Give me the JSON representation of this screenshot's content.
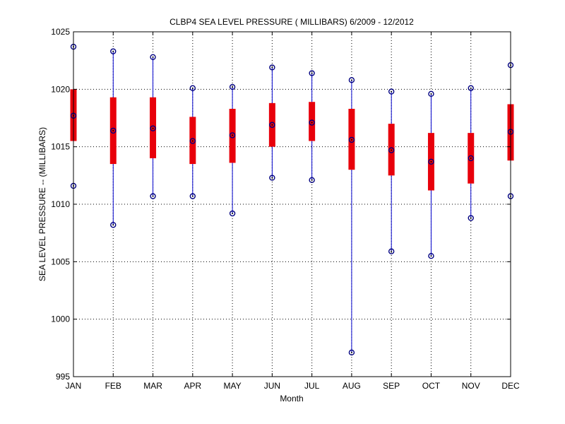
{
  "chart_data": {
    "type": "boxplot",
    "title": "CLBP4  SEA LEVEL PRESSURE ( MILLIBARS) 6/2009 - 12/2012",
    "xlabel": "Month",
    "ylabel": "SEA LEVEL PRESSURE -- (MILLIBARS)",
    "ylim": [
      995,
      1025
    ],
    "yticks": [
      995,
      1000,
      1005,
      1010,
      1015,
      1020,
      1025
    ],
    "grid": true,
    "categories": [
      "JAN",
      "FEB",
      "MAR",
      "APR",
      "MAY",
      "JUN",
      "JUL",
      "AUG",
      "SEP",
      "OCT",
      "NOV",
      "DEC"
    ],
    "series": [
      {
        "min": [
          1011.6,
          1008.2,
          1010.7,
          1010.7,
          1009.2,
          1012.3,
          1012.1,
          997.1,
          1005.9,
          1005.5,
          1008.8,
          1010.7
        ],
        "q1": [
          1015.5,
          1013.5,
          1014.0,
          1013.5,
          1013.6,
          1015.0,
          1015.5,
          1013.0,
          1012.5,
          1011.2,
          1011.8,
          1013.8
        ],
        "median": [
          1017.7,
          1016.4,
          1016.6,
          1015.5,
          1016.0,
          1016.9,
          1017.1,
          1015.6,
          1014.7,
          1013.7,
          1014.0,
          1016.3
        ],
        "q3": [
          1020.0,
          1019.3,
          1019.3,
          1017.6,
          1018.3,
          1018.8,
          1018.9,
          1018.3,
          1017.0,
          1016.2,
          1016.2,
          1018.7
        ],
        "max": [
          1023.7,
          1023.3,
          1022.8,
          1020.1,
          1020.2,
          1021.9,
          1021.4,
          1020.8,
          1019.8,
          1019.6,
          1020.1,
          1022.1
        ]
      }
    ],
    "colors": {
      "whisker": "#0000cc",
      "box": "#e8000b",
      "marker": "#000080",
      "grid": "#000000"
    }
  }
}
